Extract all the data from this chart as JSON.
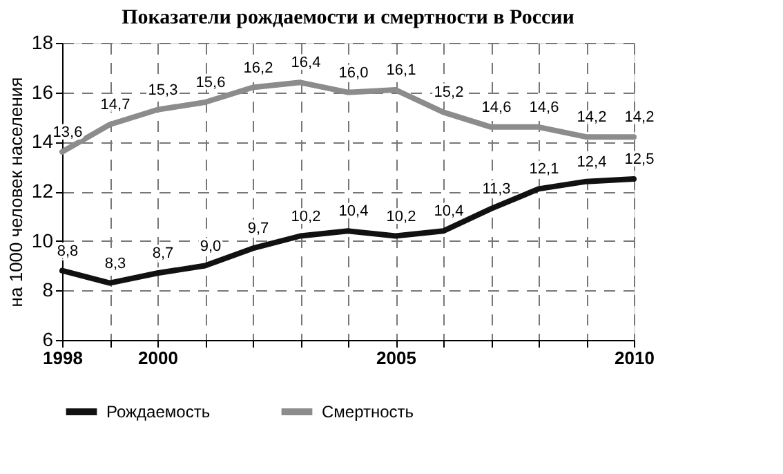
{
  "chart_data": {
    "type": "line",
    "title": "Показатели рождаемости и смертности в России",
    "ylabel": "на  1000 человек населения",
    "x": [
      1998,
      1999,
      2000,
      2001,
      2002,
      2003,
      2004,
      2005,
      2006,
      2007,
      2008,
      2009,
      2010
    ],
    "series": [
      {
        "name": "Рождаемость",
        "color": "#111111",
        "values": [
          8.8,
          8.3,
          8.7,
          9.0,
          9.7,
          10.2,
          10.4,
          10.2,
          10.4,
          11.3,
          12.1,
          12.4,
          12.5
        ],
        "value_labels": [
          "8,8",
          "8,3",
          "8,7",
          "9,0",
          "9,7",
          "10,2",
          "10,4",
          "10,2",
          "10,4",
          "11,3",
          "12,1",
          "12,4",
          "12,5"
        ]
      },
      {
        "name": "Смертность",
        "color": "#8c8c8c",
        "values": [
          13.6,
          14.7,
          15.3,
          15.6,
          16.2,
          16.4,
          16.0,
          16.1,
          15.2,
          14.6,
          14.6,
          14.2,
          14.2
        ],
        "value_labels": [
          "13,6",
          "14,7",
          "15,3",
          "15,6",
          "16,2",
          "16,4",
          "16,0",
          "16,1",
          "15,2",
          "14,6",
          "14,6",
          "14,2",
          "14,2"
        ]
      }
    ],
    "xlim": [
      1998,
      2010
    ],
    "xticks": [
      1998,
      {
        "value": 1999,
        "label": null
      },
      2000,
      {
        "value": 2001,
        "label": null
      },
      {
        "value": 2002,
        "label": null
      },
      {
        "value": 2003,
        "label": null
      },
      {
        "value": 2004,
        "label": null
      },
      2005,
      {
        "value": 2006,
        "label": null
      },
      {
        "value": 2007,
        "label": null
      },
      {
        "value": 2008,
        "label": null
      },
      {
        "value": 2009,
        "label": null
      },
      2010
    ],
    "ylim": [
      6,
      18
    ],
    "yticks": [
      6,
      8,
      10,
      12,
      14,
      16,
      18
    ],
    "grid": true,
    "line_style": "solid",
    "marker": "none",
    "legend": "bottom"
  }
}
